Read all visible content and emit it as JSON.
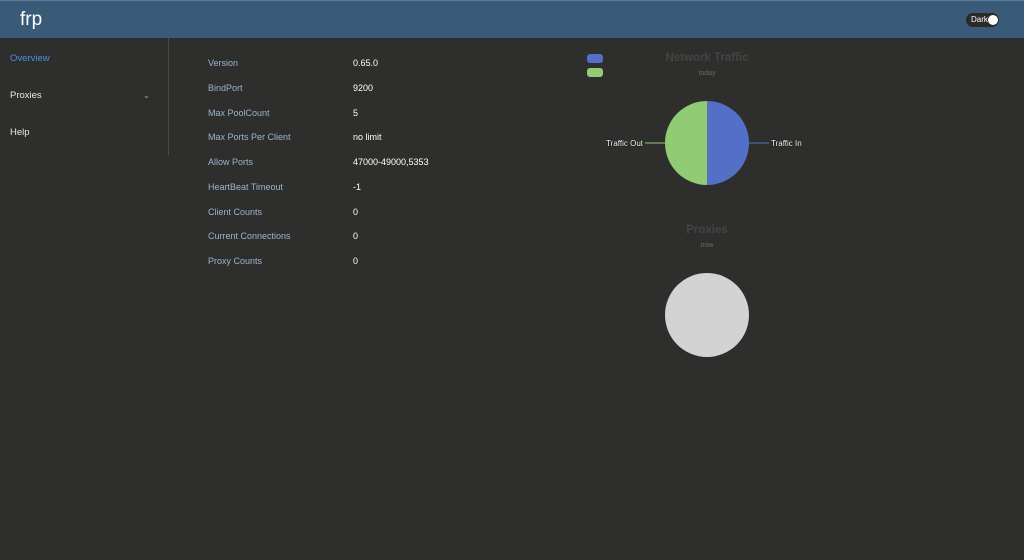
{
  "header": {
    "brand": "frp",
    "dark_toggle_label": "Dark"
  },
  "sidebar": {
    "items": [
      {
        "label": "Overview",
        "active": true
      },
      {
        "label": "Proxies",
        "has_submenu": true
      },
      {
        "label": "Help"
      }
    ]
  },
  "overview": {
    "rows": [
      {
        "key": "Version",
        "value": "0.65.0"
      },
      {
        "key": "BindPort",
        "value": "9200"
      },
      {
        "key": "Max PoolCount",
        "value": "5"
      },
      {
        "key": "Max Ports Per Client",
        "value": "no limit"
      },
      {
        "key": "Allow Ports",
        "value": "47000-49000,5353"
      },
      {
        "key": "HeartBeat Timeout",
        "value": "-1"
      },
      {
        "key": "Client Counts",
        "value": "0"
      },
      {
        "key": "Current Connections",
        "value": "0"
      },
      {
        "key": "Proxy Counts",
        "value": "0"
      }
    ]
  },
  "colors": {
    "traffic_in": "#5470c6",
    "traffic_out": "#91cc75",
    "empty": "#d3d3d3"
  },
  "chart_data": [
    {
      "type": "pie",
      "title": "Network Traffic",
      "subtitle": "today",
      "slices": [
        {
          "name": "Traffic In",
          "value": 50
        },
        {
          "name": "Traffic Out",
          "value": 50
        }
      ],
      "legend": "top-left"
    },
    {
      "type": "pie",
      "title": "Proxies",
      "subtitle": "now",
      "slices": []
    }
  ]
}
